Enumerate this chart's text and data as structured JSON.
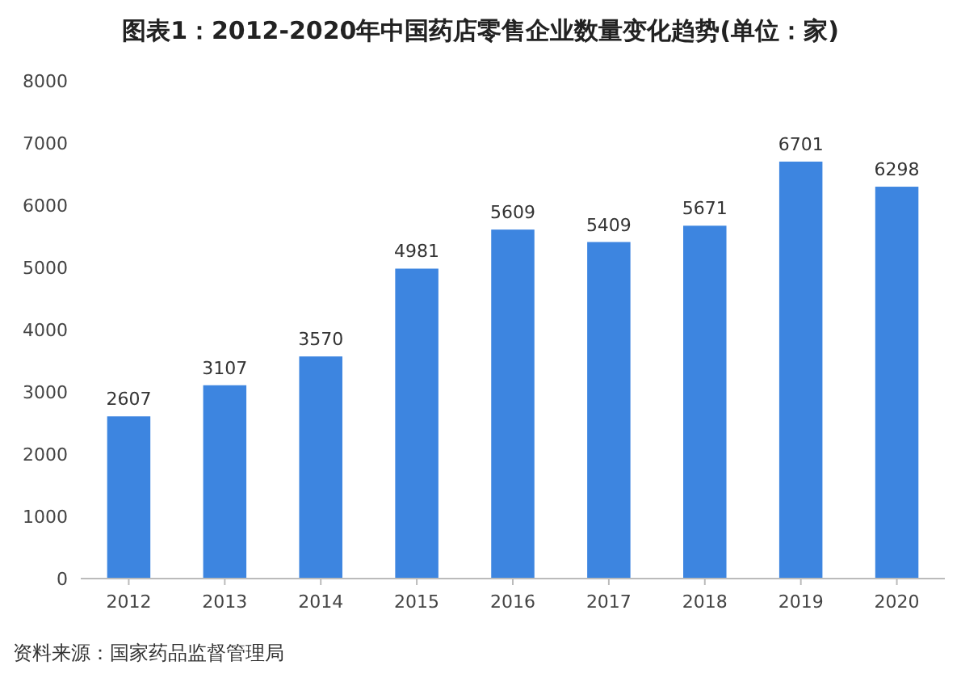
{
  "chart_data": {
    "type": "bar",
    "title": "图表1：2012-2020年中国药店零售企业数量变化趋势(单位：家)",
    "categories": [
      "2012",
      "2013",
      "2014",
      "2015",
      "2016",
      "2017",
      "2018",
      "2019",
      "2020"
    ],
    "values": [
      2607,
      3107,
      3570,
      4981,
      5609,
      5409,
      5671,
      6701,
      6298
    ],
    "color": "#3d85e0",
    "ylim": [
      0,
      8000
    ],
    "yticks": [
      0,
      1000,
      2000,
      3000,
      4000,
      5000,
      6000,
      7000,
      8000
    ],
    "grid": false,
    "data_labels": true,
    "annotations": [
      "资料来源：国家药品监督管理局"
    ]
  }
}
